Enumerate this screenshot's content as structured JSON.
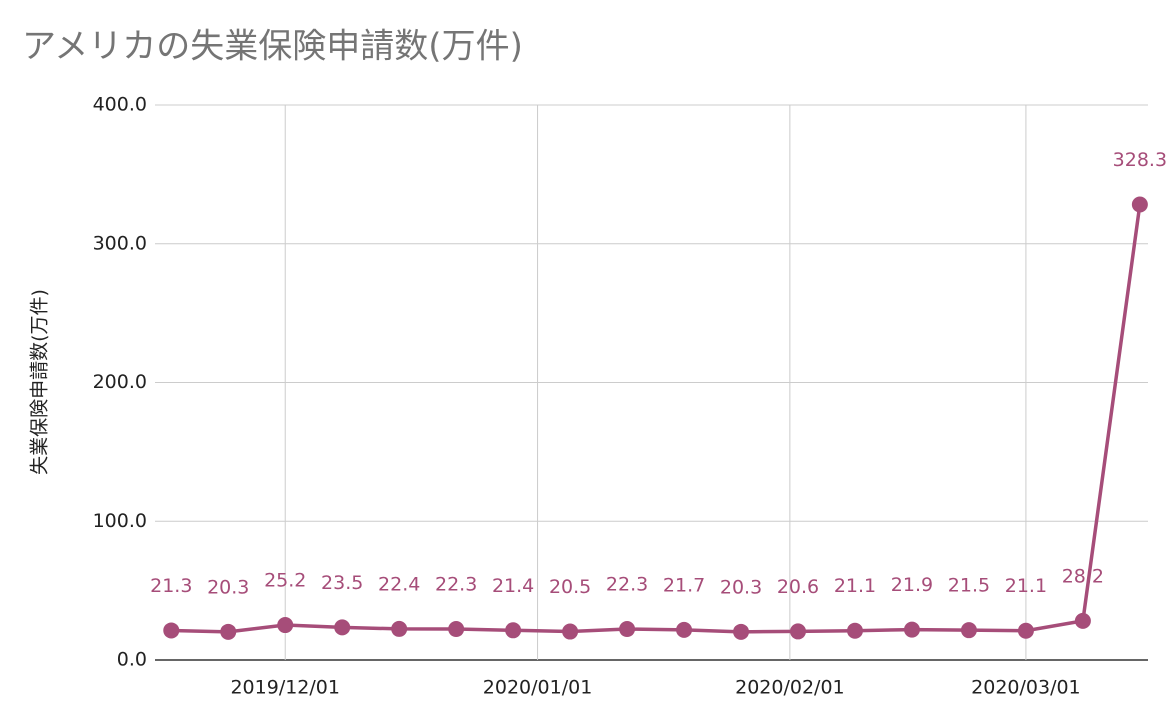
{
  "chart_data": {
    "type": "line",
    "title": "アメリカの失業保険申請数(万件)",
    "y_label": "失業保険申請数(万件)",
    "x": [
      "2019/11/17",
      "2019/11/24",
      "2019/12/01",
      "2019/12/08",
      "2019/12/15",
      "2019/12/22",
      "2019/12/29",
      "2020/01/05",
      "2020/01/12",
      "2020/01/19",
      "2020/01/26",
      "2020/02/02",
      "2020/02/09",
      "2020/02/16",
      "2020/02/23",
      "2020/03/01",
      "2020/03/08",
      "2020/03/15"
    ],
    "series": [
      {
        "name": "失業保険申請数(万件)",
        "color": "#a64d79",
        "values": [
          21.3,
          20.3,
          25.2,
          23.5,
          22.4,
          22.3,
          21.4,
          20.5,
          22.3,
          21.7,
          20.3,
          20.6,
          21.1,
          21.9,
          21.5,
          21.1,
          28.2,
          328.3
        ]
      }
    ],
    "xlim": [
      "2019/11/15",
      "2020/03/16"
    ],
    "xticks": [
      "2019/12/01",
      "2020/01/01",
      "2020/02/01",
      "2020/03/01"
    ],
    "ylim": [
      0,
      400
    ],
    "yticks": [
      {
        "value": 0,
        "label": "0.0"
      },
      {
        "value": 100,
        "label": "100.0"
      },
      {
        "value": 200,
        "label": "200.0"
      },
      {
        "value": 300,
        "label": "300.0"
      },
      {
        "value": 400,
        "label": "400.0"
      }
    ],
    "grid": true
  }
}
